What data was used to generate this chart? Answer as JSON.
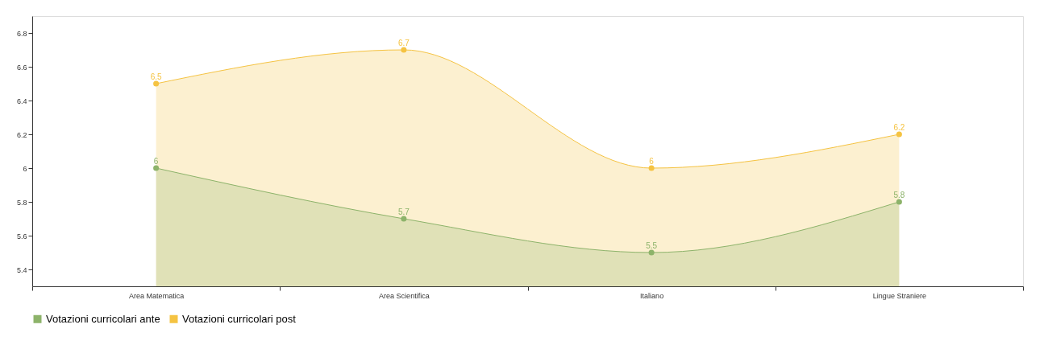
{
  "chart_data": {
    "type": "area",
    "categories": [
      "Area Matematica",
      "Area Scientifica",
      "Italiano",
      "Lingue Straniere"
    ],
    "series": [
      {
        "name": "Votazioni curricolari ante",
        "color": "#8db36a",
        "values": [
          6.0,
          5.7,
          5.5,
          5.8
        ],
        "value_labels": [
          "6",
          "5.7",
          "5.5",
          "5.8"
        ]
      },
      {
        "name": "Votazioni curricolari post",
        "color": "#f5c342",
        "values": [
          6.5,
          6.7,
          6.0,
          6.2
        ],
        "value_labels": [
          "6.5",
          "6.7",
          "6",
          "6.2"
        ]
      }
    ],
    "ylim": [
      5.3,
      6.9
    ],
    "yticks": [
      5.4,
      5.6,
      5.8,
      {
        "value": 6,
        "label": "6"
      },
      6.2,
      6.4,
      6.6,
      6.8
    ],
    "grid": false,
    "legend": "bottom",
    "marker": "circle"
  }
}
